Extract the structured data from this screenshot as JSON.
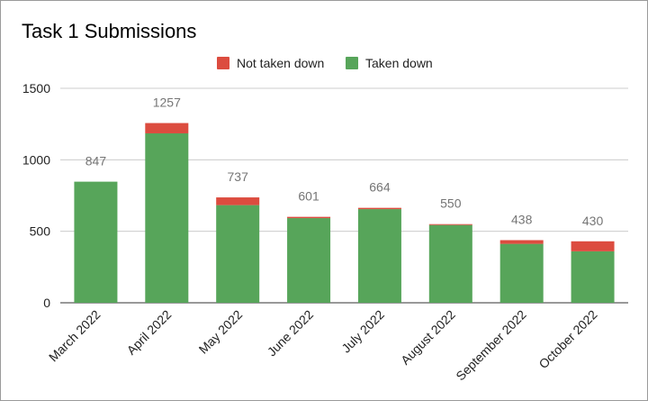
{
  "chart_data": {
    "type": "bar",
    "stacked": true,
    "title": "Task 1 Submissions",
    "xlabel": "",
    "ylabel": "",
    "ylim": [
      0,
      1500
    ],
    "yticks": [
      0,
      500,
      1000,
      1500
    ],
    "grid": true,
    "legend_position": "top",
    "categories": [
      "March 2022",
      "April 2022",
      "May 2022",
      "June 2022",
      "July 2022",
      "August 2022",
      "September 2022",
      "October 2022"
    ],
    "series": [
      {
        "name": "Taken down",
        "color": "#57a55a",
        "values": [
          847,
          1185,
          683,
          592,
          655,
          544,
          412,
          360
        ]
      },
      {
        "name": "Not taken down",
        "color": "#dc4c3f",
        "values": [
          0,
          72,
          54,
          9,
          9,
          6,
          26,
          70
        ]
      }
    ],
    "legend_order": [
      "Not taken down",
      "Taken down"
    ],
    "totals": [
      847,
      1257,
      737,
      601,
      664,
      550,
      438,
      430
    ]
  }
}
